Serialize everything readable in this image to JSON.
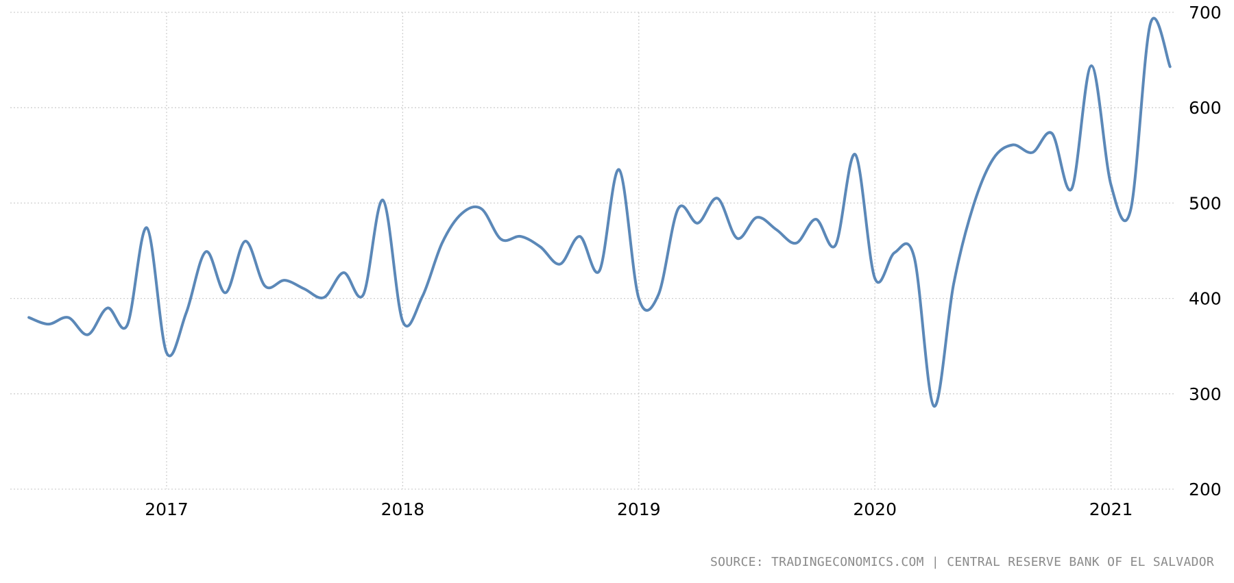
{
  "chart_data": {
    "type": "line",
    "x": [
      "2016-06",
      "2016-07",
      "2016-08",
      "2016-09",
      "2016-10",
      "2016-11",
      "2016-12",
      "2017-01",
      "2017-02",
      "2017-03",
      "2017-04",
      "2017-05",
      "2017-06",
      "2017-07",
      "2017-08",
      "2017-09",
      "2017-10",
      "2017-11",
      "2017-12",
      "2018-01",
      "2018-02",
      "2018-03",
      "2018-04",
      "2018-05",
      "2018-06",
      "2018-07",
      "2018-08",
      "2018-09",
      "2018-10",
      "2018-11",
      "2018-12",
      "2019-01",
      "2019-02",
      "2019-03",
      "2019-04",
      "2019-05",
      "2019-06",
      "2019-07",
      "2019-08",
      "2019-09",
      "2019-10",
      "2019-11",
      "2019-12",
      "2020-01",
      "2020-02",
      "2020-03",
      "2020-04",
      "2020-05",
      "2020-06",
      "2020-07",
      "2020-08",
      "2020-09",
      "2020-10",
      "2020-11",
      "2020-12",
      "2021-01",
      "2021-02",
      "2021-03",
      "2021-04"
    ],
    "series": [
      {
        "values": [
          380,
          373,
          380,
          362,
          390,
          372,
          474,
          343,
          385,
          449,
          406,
          460,
          413,
          419,
          410,
          401,
          427,
          404,
          503,
          376,
          402,
          458,
          489,
          494,
          462,
          465,
          454,
          436,
          465,
          429,
          535,
          400,
          404,
          494,
          479,
          505,
          463,
          485,
          472,
          458,
          483,
          456,
          551,
          421,
          448,
          443,
          287,
          415,
          497,
          546,
          561,
          553,
          573,
          515,
          644,
          519,
          493,
          688,
          643
        ],
        "color": "#5b88b8"
      }
    ],
    "xticks": [
      "2017",
      "2018",
      "2019",
      "2020",
      "2021"
    ],
    "yticks": [
      "200",
      "300",
      "400",
      "500",
      "600",
      "700"
    ],
    "ylim": [
      200,
      700
    ],
    "grid": true,
    "y_axis_side": "right",
    "title": "",
    "xlabel": "",
    "ylabel": ""
  },
  "source_text": "SOURCE: TRADINGECONOMICS.COM | CENTRAL RESERVE BANK OF EL SALVADOR"
}
